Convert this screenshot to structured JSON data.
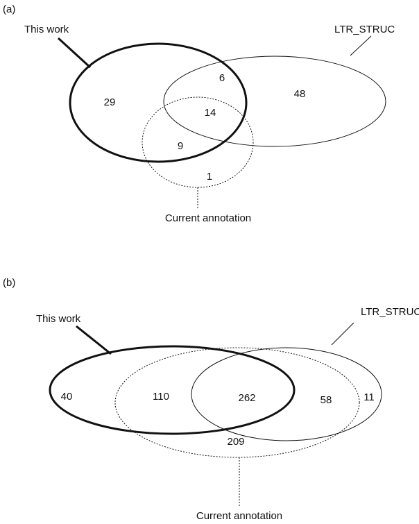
{
  "panels": [
    {
      "label": "(a)",
      "sets": [
        "This work",
        "LTR_STRUC",
        "Current annotation"
      ],
      "regions": [
        29,
        6,
        48,
        14,
        9,
        1
      ]
    },
    {
      "label": "(b)",
      "sets": [
        "This work",
        "LTR_STRUC",
        "Current annotation"
      ],
      "regions": [
        40,
        110,
        262,
        58,
        11,
        209
      ]
    }
  ]
}
